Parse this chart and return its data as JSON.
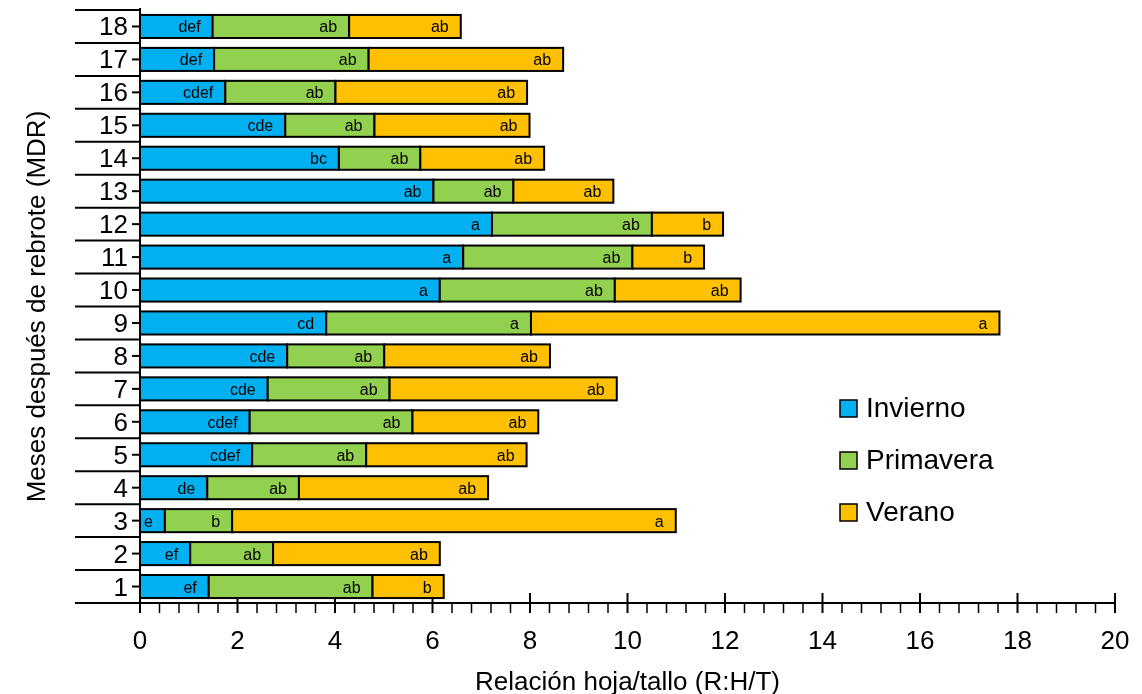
{
  "chart_data": {
    "type": "bar",
    "orientation": "horizontal",
    "stacked": true,
    "xlabel": "Relación hoja/tallo (R:H/T)",
    "ylabel": "Meses después de rebrote (MDR)",
    "categories": [
      "18",
      "17",
      "16",
      "15",
      "14",
      "13",
      "12",
      "11",
      "10",
      "9",
      "8",
      "7",
      "6",
      "5",
      "4",
      "3",
      "2",
      "1"
    ],
    "xlim": [
      0,
      20
    ],
    "xticks": [
      0,
      {
        "value": 0.4,
        "label": null
      },
      {
        "value": 0.8,
        "label": null
      },
      {
        "value": 1.2,
        "label": null
      },
      {
        "value": 1.6,
        "label": null
      },
      2,
      {
        "value": 2.4,
        "label": null
      },
      {
        "value": 2.8,
        "label": null
      },
      {
        "value": 3.2,
        "label": null
      },
      {
        "value": 3.6,
        "label": null
      },
      4,
      {
        "value": 4.4,
        "label": null
      },
      {
        "value": 4.8,
        "label": null
      },
      {
        "value": 5.2,
        "label": null
      },
      {
        "value": 5.6,
        "label": null
      },
      6,
      {
        "value": 6.4,
        "label": null
      },
      {
        "value": 6.8,
        "label": null
      },
      {
        "value": 7.2,
        "label": null
      },
      {
        "value": 7.6,
        "label": null
      },
      8,
      {
        "value": 8.4,
        "label": null
      },
      {
        "value": 8.8,
        "label": null
      },
      {
        "value": 9.2,
        "label": null
      },
      {
        "value": 9.6,
        "label": null
      },
      10,
      {
        "value": 10.4,
        "label": null
      },
      {
        "value": 10.8,
        "label": null
      },
      {
        "value": 11.2,
        "label": null
      },
      {
        "value": 11.6,
        "label": null
      },
      12,
      {
        "value": 12.4,
        "label": null
      },
      {
        "value": 12.8,
        "label": null
      },
      {
        "value": 13.2,
        "label": null
      },
      {
        "value": 13.6,
        "label": null
      },
      14,
      {
        "value": 14.4,
        "label": null
      },
      {
        "value": 14.8,
        "label": null
      },
      {
        "value": 15.2,
        "label": null
      },
      {
        "value": 15.6,
        "label": null
      },
      16,
      {
        "value": 16.4,
        "label": null
      },
      {
        "value": 16.8,
        "label": null
      },
      {
        "value": 17.2,
        "label": null
      },
      {
        "value": 17.6,
        "label": null
      },
      18,
      {
        "value": 18.4,
        "label": null
      },
      {
        "value": 18.8,
        "label": null
      },
      {
        "value": 19.2,
        "label": null
      },
      {
        "value": 19.6,
        "label": null
      },
      20
    ],
    "legend": "right",
    "grid": false,
    "series": [
      {
        "name": "Invierno",
        "color": "#00b0f0",
        "values": [
          1.49,
          1.52,
          1.75,
          2.98,
          4.08,
          6.02,
          7.22,
          6.63,
          6.15,
          3.82,
          3.02,
          2.62,
          2.25,
          2.3,
          1.38,
          0.51,
          1.03,
          1.41
        ],
        "value_labels": [
          "def",
          "def",
          "cdef",
          "cde",
          "bc",
          "ab",
          "a",
          "a",
          "a",
          "cd",
          "cde",
          "cde",
          "cdef",
          "cdef",
          "de",
          "e",
          "ef",
          "ef"
        ]
      },
      {
        "name": "Primavera",
        "color": "#92d050",
        "values": [
          2.8,
          3.17,
          2.26,
          1.83,
          1.67,
          1.64,
          3.28,
          3.47,
          3.59,
          4.2,
          1.99,
          2.5,
          3.34,
          2.34,
          1.88,
          1.38,
          1.7,
          3.36
        ],
        "value_labels": [
          "ab",
          "ab",
          "ab",
          "ab",
          "ab",
          "ab",
          "ab",
          "ab",
          "ab",
          "a",
          "ab",
          "ab",
          "ab",
          "ab",
          "ab",
          "b",
          "ab",
          "ab"
        ]
      },
      {
        "name": "Verano",
        "color": "#ffc000",
        "values": [
          2.29,
          3.99,
          3.93,
          3.18,
          2.54,
          2.05,
          1.46,
          1.47,
          2.58,
          9.61,
          3.4,
          4.66,
          2.58,
          3.29,
          3.88,
          9.1,
          3.42,
          1.46
        ],
        "value_labels": [
          "ab",
          "ab",
          "ab",
          "ab",
          "ab",
          "ab",
          "b",
          "b",
          "ab",
          "a",
          "ab",
          "ab",
          "ab",
          "ab",
          "ab",
          "a",
          "ab",
          "b"
        ]
      }
    ]
  }
}
